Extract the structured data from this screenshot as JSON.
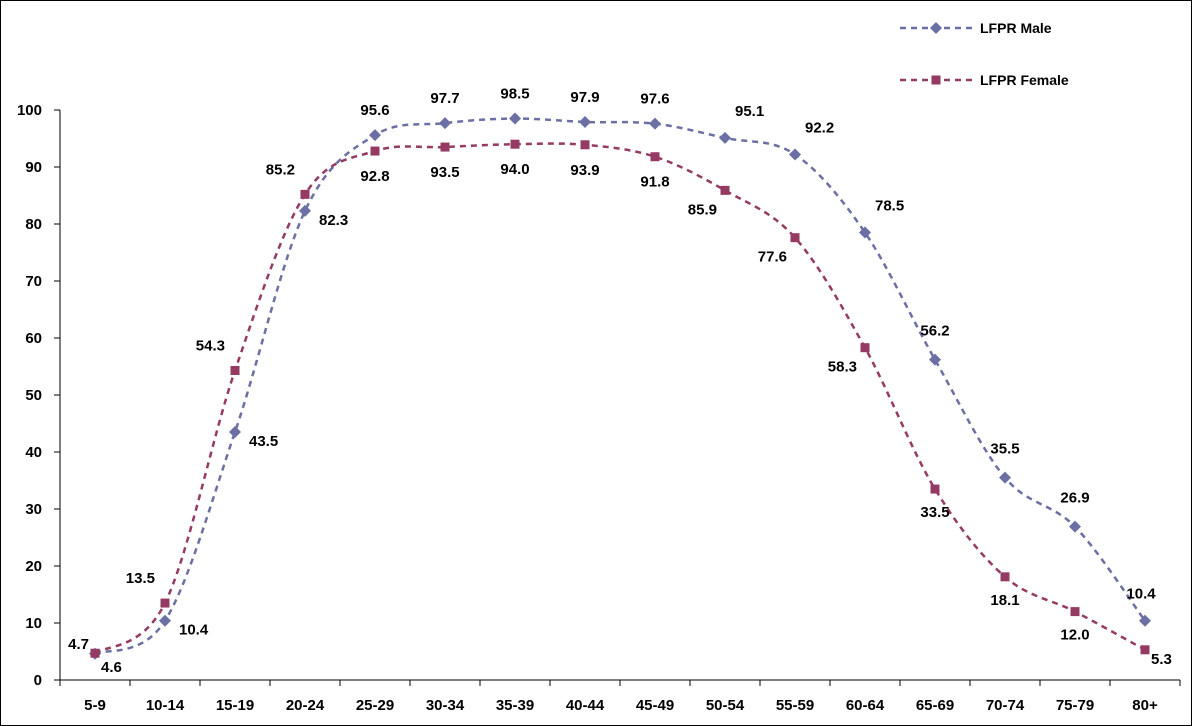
{
  "chart_data": {
    "type": "line",
    "title": "",
    "xlabel": "",
    "ylabel": "",
    "categories": [
      "5-9",
      "10-14",
      "15-19",
      "20-24",
      "25-29",
      "30-34",
      "35-39",
      "40-44",
      "45-49",
      "50-54",
      "55-59",
      "60-64",
      "65-69",
      "70-74",
      "75-79",
      "80+"
    ],
    "ylim": [
      0,
      100
    ],
    "yticks": [
      0,
      10,
      20,
      30,
      40,
      50,
      60,
      70,
      80,
      90,
      100
    ],
    "grid": false,
    "legend_position": "top-right",
    "series": [
      {
        "name": "LFPR Male",
        "color": "#6b6fa3",
        "marker": "diamond",
        "line_style": "dashed",
        "smooth": true,
        "values": [
          4.6,
          10.4,
          43.5,
          82.3,
          95.6,
          97.7,
          98.5,
          97.9,
          97.6,
          95.1,
          92.2,
          78.5,
          56.2,
          35.5,
          26.9,
          10.4
        ]
      },
      {
        "name": "LFPR Female",
        "color": "#953a62",
        "marker": "square",
        "line_style": "dashed",
        "smooth": true,
        "values": [
          4.7,
          13.5,
          54.3,
          85.2,
          92.8,
          93.5,
          94.0,
          93.9,
          91.8,
          85.9,
          77.6,
          58.3,
          33.5,
          18.1,
          12.0,
          5.3
        ]
      }
    ]
  }
}
